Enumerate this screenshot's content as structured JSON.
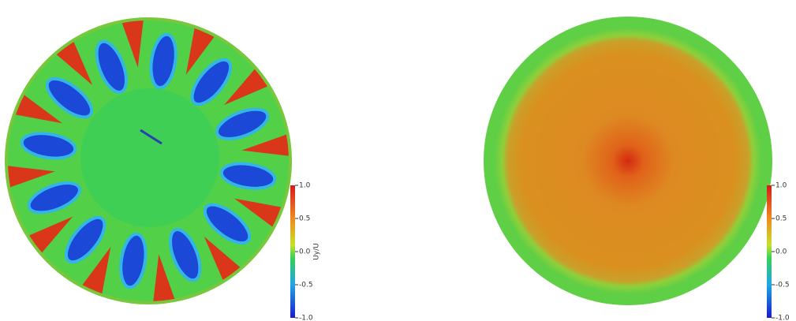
{
  "panels": [
    {
      "colorbar": {
        "label": "Uy/U",
        "ticks": [
          "1.0",
          "0.5",
          "0.0",
          "-0.5",
          "-1.0"
        ]
      }
    },
    {
      "colorbar": {
        "ticks": [
          "1.0",
          "0.5",
          "0.0",
          "-0.5",
          "-1.0"
        ]
      }
    }
  ]
}
